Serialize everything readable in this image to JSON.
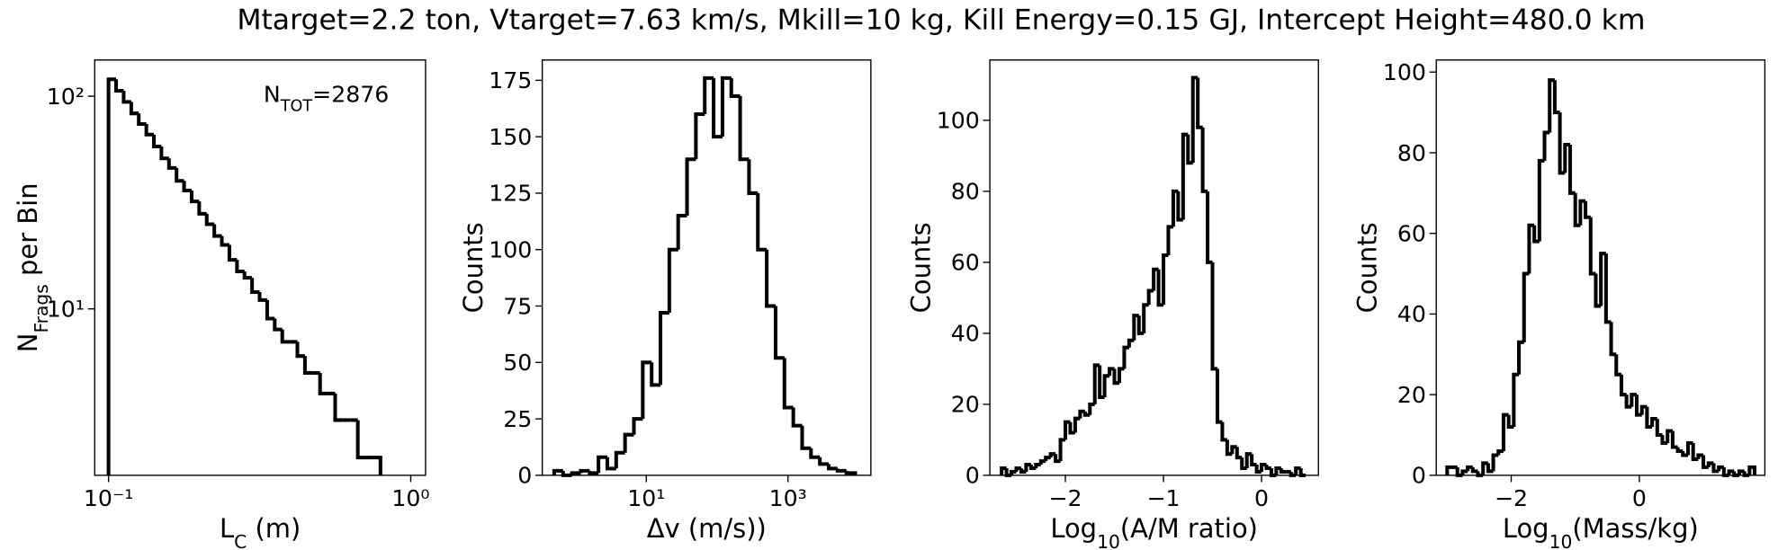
{
  "title": "Mtarget=2.2 ton, Vtarget=7.63 km/s, Mkill=10 kg, Kill Energy=0.15 GJ, Intercept Height=480.0 km",
  "chart_data": [
    {
      "type": "histogram",
      "xscale": "log",
      "yscale": "log",
      "color": "#000000",
      "xlabel": [
        "L",
        "C",
        " (m)"
      ],
      "ylabel": [
        "N",
        "Frags",
        " per Bin"
      ],
      "annotation": [
        "N",
        "TOT",
        "=2876"
      ],
      "xlim": [
        0.09,
        1.12
      ],
      "ylim": [
        1.65,
        148
      ],
      "xticks": [
        {
          "value": 0.1,
          "label": "10⁻¹"
        },
        {
          "value": 1,
          "label": "10⁰"
        }
      ],
      "yticks": [
        {
          "value": 10,
          "label": "10¹"
        },
        {
          "value": 100,
          "label": "10²"
        }
      ],
      "bins": [
        0.1,
        0.1059,
        0.1122,
        0.1189,
        0.1259,
        0.1334,
        0.1413,
        0.1496,
        0.1585,
        0.1679,
        0.1778,
        0.1884,
        0.1995,
        0.2113,
        0.2239,
        0.2371,
        0.2512,
        0.2661,
        0.2818,
        0.2985,
        0.3162,
        0.335,
        0.3548,
        0.3758,
        0.3981,
        0.4217,
        0.4467,
        0.4732,
        0.5012,
        0.5309,
        0.5623,
        0.5957,
        0.631,
        0.6683,
        0.7079,
        0.7499,
        0.7943
      ],
      "values": [
        120,
        106,
        94,
        83,
        74,
        66,
        58,
        51,
        46,
        40,
        36,
        32,
        28,
        25,
        22,
        20,
        17,
        15,
        14,
        12,
        11,
        9,
        8,
        7,
        7,
        6,
        5,
        5,
        4,
        4,
        3,
        3,
        3,
        2,
        2,
        2
      ]
    },
    {
      "type": "histogram",
      "xscale": "log",
      "yscale": "linear",
      "color": "#000000",
      "xlabel": [
        "Δv (m/s))"
      ],
      "ylabel": [
        "Counts"
      ],
      "xlim": [
        0.34,
        14800
      ],
      "ylim": [
        0,
        184
      ],
      "xticks": [
        {
          "value": 10,
          "label": "10¹"
        },
        {
          "value": 1000,
          "label": "10³"
        }
      ],
      "yticks": [
        0,
        25,
        50,
        75,
        100,
        125,
        150,
        175
      ],
      "bins": [
        0.501,
        0.668,
        0.891,
        1.189,
        1.585,
        2.113,
        2.818,
        3.758,
        5.012,
        6.683,
        8.913,
        11.89,
        15.85,
        21.13,
        28.18,
        37.58,
        50.12,
        66.83,
        89.13,
        118.9,
        158.5,
        211.3,
        281.8,
        375.8,
        501.2,
        668.3,
        891.3,
        1189,
        1585,
        2113,
        2818,
        3758,
        5012,
        6683,
        8913
      ],
      "values": [
        2,
        0,
        1,
        2,
        1,
        8,
        3,
        10,
        18,
        25,
        50,
        40,
        72,
        100,
        115,
        140,
        160,
        176,
        150,
        176,
        168,
        140,
        125,
        100,
        75,
        52,
        30,
        22,
        12,
        8,
        5,
        3,
        2,
        1
      ]
    },
    {
      "type": "histogram",
      "xscale": "linear",
      "yscale": "linear",
      "color": "#000000",
      "xlabel": [
        "Log",
        "10",
        "(A/M ratio)"
      ],
      "ylabel": [
        "Counts"
      ],
      "xlim": [
        -2.77,
        0.58
      ],
      "ylim": [
        0,
        117
      ],
      "xticks": [
        {
          "value": -2,
          "label": "−2"
        },
        {
          "value": -1,
          "label": "−1"
        },
        0
      ],
      "yticks": [
        0,
        20,
        40,
        60,
        80,
        100
      ],
      "bins": [
        -2.65,
        -2.6,
        -2.55,
        -2.5,
        -2.45,
        -2.4,
        -2.35,
        -2.3,
        -2.25,
        -2.2,
        -2.15,
        -2.1,
        -2.05,
        -2.0,
        -1.95,
        -1.9,
        -1.85,
        -1.8,
        -1.75,
        -1.7,
        -1.65,
        -1.6,
        -1.55,
        -1.5,
        -1.45,
        -1.4,
        -1.35,
        -1.3,
        -1.25,
        -1.2,
        -1.15,
        -1.1,
        -1.05,
        -1.0,
        -0.95,
        -0.9,
        -0.85,
        -0.8,
        -0.75,
        -0.7,
        -0.65,
        -0.6,
        -0.55,
        -0.5,
        -0.45,
        -0.4,
        -0.35,
        -0.3,
        -0.25,
        -0.2,
        -0.15,
        -0.1,
        -0.05,
        0,
        0.05,
        0.1,
        0.15,
        0.2,
        0.25,
        0.3,
        0.35,
        0.4,
        0.45
      ],
      "values": [
        2,
        0,
        1,
        2,
        1,
        3,
        2,
        3,
        4,
        5,
        6,
        4,
        10,
        15,
        12,
        16,
        18,
        17,
        20,
        31,
        22,
        28,
        30,
        26,
        30,
        36,
        38,
        45,
        40,
        48,
        52,
        58,
        48,
        62,
        70,
        80,
        72,
        96,
        88,
        112,
        98,
        80,
        60,
        30,
        15,
        10,
        6,
        8,
        5,
        2,
        6,
        3,
        1,
        3,
        2,
        0,
        2,
        1,
        1,
        0,
        2,
        0
      ]
    },
    {
      "type": "histogram",
      "xscale": "linear",
      "yscale": "linear",
      "color": "#000000",
      "xlabel": [
        "Log",
        "10",
        "(Mass/kg)"
      ],
      "ylabel": [
        "Counts"
      ],
      "xlim": [
        -3.17,
        1.96
      ],
      "ylim": [
        0,
        103
      ],
      "xticks": [
        {
          "value": -2,
          "label": "−2"
        },
        0
      ],
      "yticks": [
        0,
        20,
        40,
        60,
        80,
        100
      ],
      "bins": [
        -3,
        -2.92,
        -2.84,
        -2.76,
        -2.68,
        -2.6,
        -2.52,
        -2.44,
        -2.36,
        -2.28,
        -2.2,
        -2.12,
        -2.04,
        -1.96,
        -1.88,
        -1.8,
        -1.72,
        -1.64,
        -1.56,
        -1.48,
        -1.4,
        -1.32,
        -1.24,
        -1.16,
        -1.08,
        -1,
        -0.92,
        -0.84,
        -0.76,
        -0.68,
        -0.6,
        -0.52,
        -0.44,
        -0.36,
        -0.28,
        -0.2,
        -0.12,
        -0.04,
        0.04,
        0.12,
        0.2,
        0.28,
        0.36,
        0.44,
        0.52,
        0.6,
        0.68,
        0.76,
        0.84,
        0.92,
        1,
        1.08,
        1.16,
        1.24,
        1.32,
        1.4,
        1.48,
        1.56,
        1.64,
        1.72,
        1.8
      ],
      "values": [
        2,
        2,
        0,
        1,
        2,
        1,
        0,
        3,
        1,
        5,
        6,
        15,
        12,
        25,
        33,
        50,
        62,
        58,
        78,
        85,
        98,
        90,
        75,
        82,
        70,
        62,
        68,
        64,
        50,
        42,
        55,
        38,
        30,
        25,
        20,
        17,
        20,
        15,
        17,
        12,
        14,
        10,
        8,
        11,
        7,
        6,
        5,
        8,
        4,
        5,
        2,
        3,
        1,
        2,
        0,
        1,
        0,
        1,
        0,
        2
      ]
    }
  ]
}
